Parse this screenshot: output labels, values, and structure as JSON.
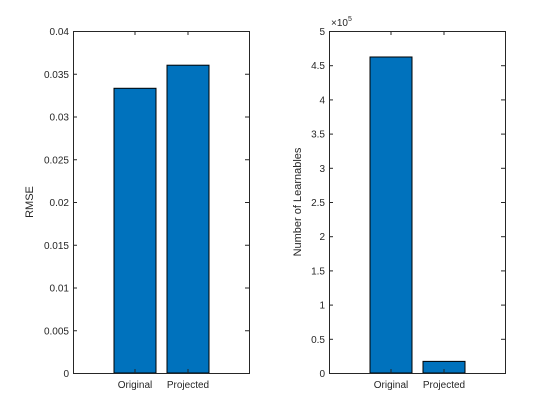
{
  "chart_data": [
    {
      "type": "bar",
      "categories": [
        "Original",
        "Projected"
      ],
      "values": [
        0.0333,
        0.036
      ],
      "ylabel": "RMSE",
      "xlabel": "",
      "ylim": [
        0,
        0.04
      ],
      "yticks": [
        "0",
        "0.005",
        "0.01",
        "0.015",
        "0.02",
        "0.025",
        "0.03",
        "0.035",
        "0.04"
      ],
      "bar_color": "#0072BD",
      "grid": false
    },
    {
      "type": "bar",
      "categories": [
        "Original",
        "Projected"
      ],
      "values": [
        462000,
        17000
      ],
      "ylabel": "Number of Learnables",
      "xlabel": "",
      "ylim": [
        0,
        500000
      ],
      "yticks": [
        "0",
        "0.5",
        "1",
        "1.5",
        "2",
        "2.5",
        "3",
        "3.5",
        "4",
        "4.5",
        "5"
      ],
      "exponent_base": "×10",
      "exponent_power": "5",
      "bar_color": "#0072BD",
      "grid": false
    }
  ]
}
